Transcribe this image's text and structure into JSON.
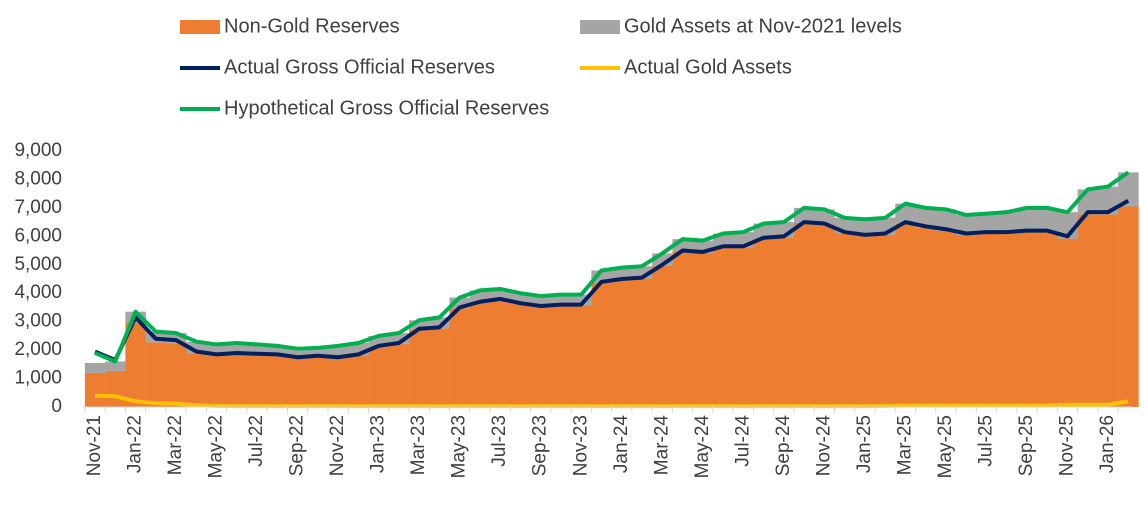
{
  "chart_data": {
    "type": "stacked-bar-line",
    "categories": [
      "Nov-21",
      null,
      "Jan-22",
      null,
      "Mar-22",
      null,
      "May-22",
      null,
      "Jul-22",
      null,
      "Sep-22",
      null,
      "Nov-22",
      null,
      "Jan-23",
      null,
      "Mar-23",
      null,
      "May-23",
      null,
      "Jul-23",
      null,
      "Sep-23",
      null,
      "Nov-23",
      null,
      "Jan-24",
      null,
      "Mar-24",
      null,
      "May-24",
      null,
      "Jul-24",
      null,
      "Sep-24",
      null,
      "Nov-24",
      null,
      "Jan-25",
      null,
      "Mar-25",
      null,
      "May-25",
      null,
      "Jul-25",
      null,
      "Sep-25",
      null,
      "Nov-25",
      null,
      "Jan-26",
      null
    ],
    "series": [
      {
        "name": "Non-Gold Reserves",
        "kind": "bar",
        "color": "#ed7d31",
        "values": [
          1200,
          1270,
          2950,
          2270,
          2230,
          1890,
          1810,
          1870,
          1840,
          1820,
          1720,
          1770,
          1720,
          1820,
          2120,
          2220,
          2720,
          2770,
          3470,
          3670,
          3770,
          3620,
          3520,
          3570,
          3570,
          4370,
          4470,
          4520,
          4970,
          5470,
          5420,
          5620,
          5620,
          5920,
          5970,
          6470,
          6420,
          6120,
          6020,
          6060,
          6450,
          6300,
          6200,
          6050,
          6100,
          6100,
          6150,
          6150,
          5920,
          6770,
          6770,
          7050
        ]
      },
      {
        "name": "Gold Assets at Nov-2021 levels",
        "kind": "bar",
        "color": "#a5a5a5",
        "values": [
          350,
          330,
          400,
          380,
          370,
          400,
          380,
          380,
          360,
          330,
          330,
          310,
          430,
          430,
          380,
          380,
          330,
          380,
          380,
          430,
          380,
          380,
          380,
          380,
          380,
          430,
          430,
          430,
          430,
          430,
          430,
          480,
          530,
          530,
          530,
          530,
          530,
          530,
          590,
          600,
          700,
          700,
          750,
          700,
          700,
          750,
          850,
          850,
          930,
          880,
          980,
          1200
        ]
      },
      {
        "name": "Actual Gross Official Reserves",
        "kind": "line",
        "color": "#002060",
        "values": [
          1950,
          1650,
          3150,
          2400,
          2350,
          1950,
          1850,
          1900,
          1870,
          1850,
          1750,
          1800,
          1750,
          1850,
          2150,
          2250,
          2750,
          2800,
          3500,
          3700,
          3800,
          3650,
          3550,
          3600,
          3600,
          4400,
          4500,
          4550,
          5000,
          5500,
          5450,
          5650,
          5650,
          5950,
          6000,
          6500,
          6450,
          6150,
          6050,
          6100,
          6500,
          6350,
          6250,
          6100,
          6150,
          6150,
          6200,
          6200,
          6000,
          6850,
          6850,
          7250
        ]
      },
      {
        "name": "Actual Gold Assets",
        "kind": "line",
        "color": "#ffc000",
        "values": [
          400,
          380,
          200,
          130,
          120,
          60,
          40,
          30,
          30,
          30,
          30,
          30,
          30,
          30,
          30,
          30,
          30,
          30,
          30,
          30,
          30,
          30,
          30,
          30,
          30,
          30,
          30,
          30,
          30,
          30,
          30,
          30,
          30,
          30,
          30,
          30,
          30,
          30,
          30,
          40,
          50,
          50,
          50,
          50,
          50,
          50,
          50,
          50,
          80,
          80,
          80,
          200
        ]
      },
      {
        "name": "Hypothetical Gross Official Reserves",
        "kind": "line",
        "color": "#00b050",
        "values": [
          1900,
          1600,
          3350,
          2650,
          2600,
          2300,
          2200,
          2250,
          2200,
          2150,
          2050,
          2080,
          2150,
          2250,
          2500,
          2600,
          3050,
          3150,
          3850,
          4100,
          4150,
          4000,
          3900,
          3950,
          3950,
          4800,
          4900,
          4950,
          5400,
          5900,
          5850,
          6100,
          6150,
          6450,
          6500,
          7000,
          6950,
          6650,
          6600,
          6650,
          7150,
          7000,
          6950,
          6750,
          6800,
          6850,
          7000,
          7000,
          6850,
          7650,
          7750,
          8250
        ]
      }
    ],
    "ylim": [
      0,
      9000
    ],
    "yticks": [
      0,
      {
        "value": 1000,
        "label": "1,000"
      },
      {
        "value": 2000,
        "label": "2,000"
      },
      {
        "value": 3000,
        "label": "3,000"
      },
      {
        "value": 4000,
        "label": "4,000"
      },
      {
        "value": 5000,
        "label": "5,000"
      },
      {
        "value": 6000,
        "label": "6,000"
      },
      {
        "value": 7000,
        "label": "7,000"
      },
      {
        "value": 8000,
        "label": "8,000"
      },
      {
        "value": 9000,
        "label": "9,000"
      }
    ],
    "grid": false
  }
}
